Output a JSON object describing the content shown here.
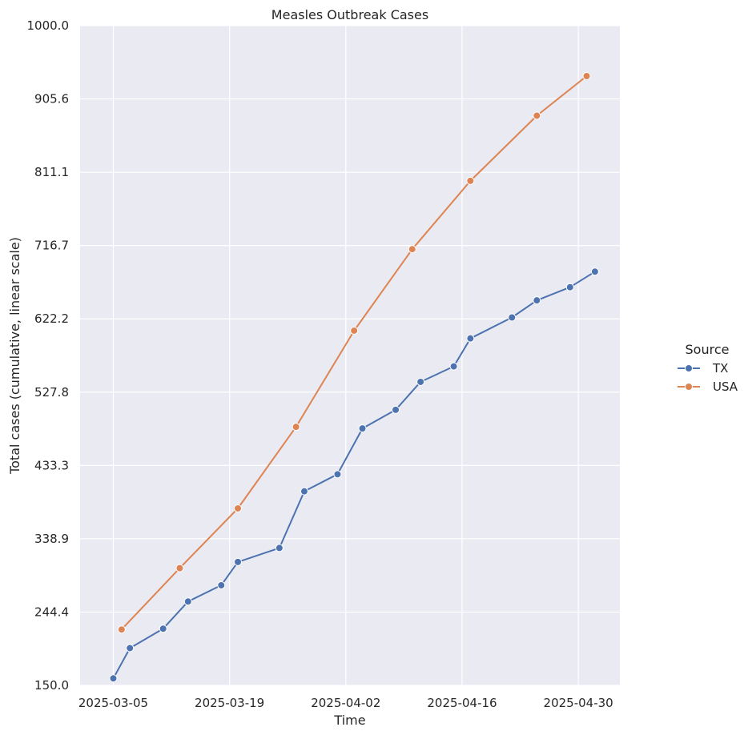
{
  "chart_data": {
    "type": "line",
    "title": "Measles Outbreak Cases",
    "xlabel": "Time",
    "ylabel": "Total cases (cumulative, linear scale)",
    "ylim": [
      150.0,
      1000.0
    ],
    "y_ticks": [
      "150.0",
      "244.4",
      "338.9",
      "433.3",
      "527.8",
      "622.2",
      "716.7",
      "811.1",
      "905.6",
      "1000.0"
    ],
    "x_range": [
      "2025-03-01",
      "2025-05-05"
    ],
    "x_ticks": [
      "2025-03-05",
      "2025-03-19",
      "2025-04-02",
      "2025-04-16",
      "2025-04-30"
    ],
    "grid": true,
    "background": "#eaeaf2",
    "legend": {
      "title": "Source",
      "placement": "right"
    },
    "series": [
      {
        "name": "TX",
        "color": "#4c72b0",
        "points": [
          {
            "x": "2025-03-05",
            "y": 159
          },
          {
            "x": "2025-03-07",
            "y": 198
          },
          {
            "x": "2025-03-11",
            "y": 223
          },
          {
            "x": "2025-03-14",
            "y": 258
          },
          {
            "x": "2025-03-18",
            "y": 279
          },
          {
            "x": "2025-03-20",
            "y": 309
          },
          {
            "x": "2025-03-25",
            "y": 327
          },
          {
            "x": "2025-03-28",
            "y": 400
          },
          {
            "x": "2025-04-01",
            "y": 422
          },
          {
            "x": "2025-04-04",
            "y": 481
          },
          {
            "x": "2025-04-08",
            "y": 505
          },
          {
            "x": "2025-04-11",
            "y": 541
          },
          {
            "x": "2025-04-15",
            "y": 561
          },
          {
            "x": "2025-04-17",
            "y": 597
          },
          {
            "x": "2025-04-22",
            "y": 624
          },
          {
            "x": "2025-04-25",
            "y": 646
          },
          {
            "x": "2025-04-29",
            "y": 663
          },
          {
            "x": "2025-05-02",
            "y": 683
          }
        ]
      },
      {
        "name": "USA",
        "color": "#dd8452",
        "points": [
          {
            "x": "2025-03-06",
            "y": 222
          },
          {
            "x": "2025-03-13",
            "y": 301
          },
          {
            "x": "2025-03-20",
            "y": 378
          },
          {
            "x": "2025-03-27",
            "y": 483
          },
          {
            "x": "2025-04-03",
            "y": 607
          },
          {
            "x": "2025-04-10",
            "y": 712
          },
          {
            "x": "2025-04-17",
            "y": 800
          },
          {
            "x": "2025-04-25",
            "y": 884
          },
          {
            "x": "2025-05-01",
            "y": 935
          }
        ]
      }
    ]
  }
}
